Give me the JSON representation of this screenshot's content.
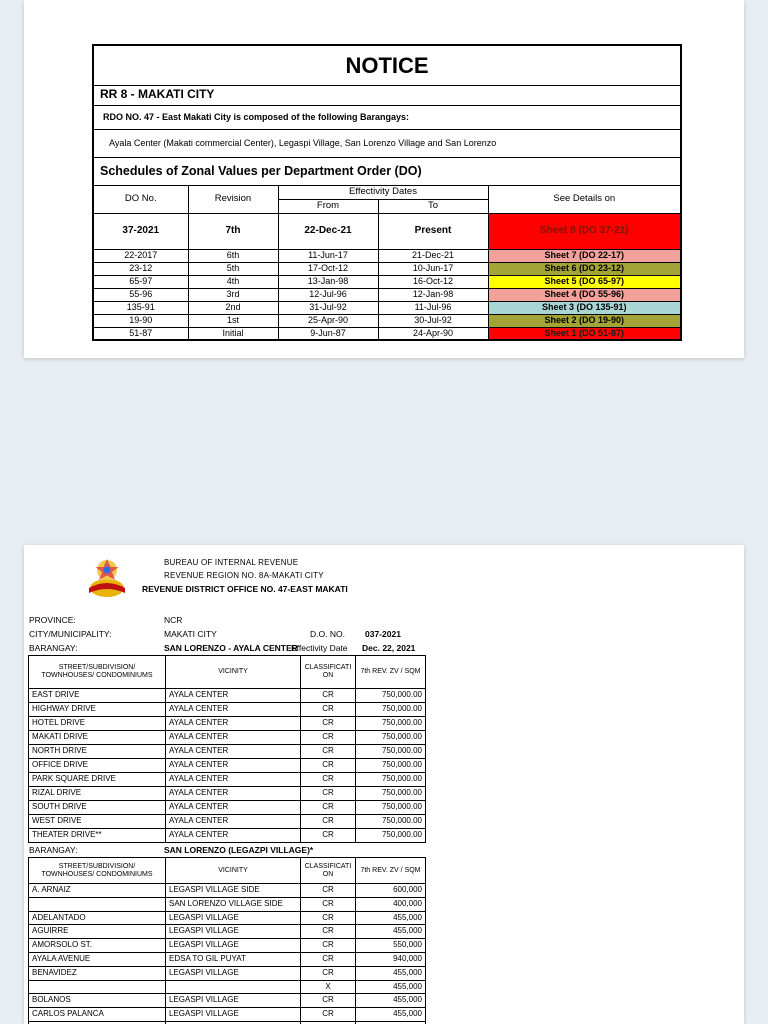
{
  "notice": {
    "title": "NOTICE",
    "region": "RR 8 - MAKATI CITY",
    "composed_label": "RDO NO. 47 - East Makati City is composed of the following Barangays:",
    "barangays_line": "Ayala Center (Makati commercial Center), Legaspi Village, San Lorenzo Village and San Lorenzo",
    "schedule_title": "Schedules of Zonal Values per Department Order (DO)",
    "headers": {
      "do_no": "DO No.",
      "revision": "Revision",
      "effectivity": "Effectivity Dates",
      "from": "From",
      "to": "To",
      "details": "See Details on"
    },
    "rows": [
      {
        "do_no": "37-2021",
        "revision": "7th",
        "from": "22-Dec-21",
        "to": "Present",
        "details": "Sheet 8 (DO 37-21)",
        "bg": "#FF0000",
        "fg": "#7E1400",
        "current": true
      },
      {
        "do_no": "22-2017",
        "revision": "6th",
        "from": "11-Jun-17",
        "to": "21-Dec-21",
        "details": "Sheet 7 (DO 22-17)",
        "bg": "#F2A29B",
        "fg": "#000000"
      },
      {
        "do_no": "23-12",
        "revision": "5th",
        "from": "17-Oct-12",
        "to": "10-Jun-17",
        "details": "Sheet 6 (DO 23-12)",
        "bg": "#A3A437",
        "fg": "#000000"
      },
      {
        "do_no": "65-97",
        "revision": "4th",
        "from": "13-Jan-98",
        "to": "16-Oct-12",
        "details": "Sheet 5 (DO 65-97)",
        "bg": "#FFFF00",
        "fg": "#000000"
      },
      {
        "do_no": "55-96",
        "revision": "3rd",
        "from": "12-Jul-96",
        "to": "12-Jan-98",
        "details": "Sheet 4 (DO 55-96)",
        "bg": "#F2A29B",
        "fg": "#000000"
      },
      {
        "do_no": "135-91",
        "revision": "2nd",
        "from": "31-Jul-92",
        "to": "11-Jul-96",
        "details": "Sheet 3 (DO 135-91)",
        "bg": "#A9D6D4",
        "fg": "#000000"
      },
      {
        "do_no": "19-90",
        "revision": "1st",
        "from": "25-Apr-90",
        "to": "30-Jul-92",
        "details": "Sheet 2 (DO 19-90)",
        "bg": "#A3A437",
        "fg": "#000000"
      },
      {
        "do_no": "51-87",
        "revision": "Initial",
        "from": "9-Jun-87",
        "to": "24-Apr-90",
        "details": "Sheet 1 (DO 51-87)",
        "bg": "#FF0000",
        "fg": "#1A1A1A"
      }
    ]
  },
  "p2": {
    "agency_line1": "BUREAU OF INTERNAL REVENUE",
    "agency_line2": "REVENUE REGION NO. 8A-MAKATI CITY",
    "agency_line3": "REVENUE DISTRICT OFFICE NO. 47-EAST MAKATI",
    "province_label": "PROVINCE:",
    "province": "NCR",
    "city_label": "CITY/MUNICIPALITY:",
    "city": "MAKATI CITY",
    "do_label": "D.O. NO.",
    "do_no": "037-2021",
    "barangay_label": "BARANGAY:",
    "barangay1": "SAN LORENZO -  AYALA CENTER",
    "effectivity_label": "Effectivity Date",
    "effectivity_date": "Dec. 22, 2021",
    "columns": {
      "street": "STREET/SUBDIVISION/ TOWNHOUSES/ CONDOMINIUMS",
      "vicinity": "VICINITY",
      "cls": "CLASSIFICATI ON",
      "zv": "7th REV. ZV / SQM"
    },
    "table1": [
      {
        "street": "EAST DRIVE",
        "vicinity": "AYALA CENTER",
        "cls": "CR",
        "zv": "750,000.00"
      },
      {
        "street": "HIGHWAY DRIVE",
        "vicinity": "AYALA CENTER",
        "cls": "CR",
        "zv": "750,000.00"
      },
      {
        "street": "HOTEL DRIVE",
        "vicinity": "AYALA CENTER",
        "cls": "CR",
        "zv": "750,000.00"
      },
      {
        "street": "MAKATI DRIVE",
        "vicinity": "AYALA CENTER",
        "cls": "CR",
        "zv": "750,000.00"
      },
      {
        "street": "NORTH DRIVE",
        "vicinity": "AYALA CENTER",
        "cls": "CR",
        "zv": "750,000.00"
      },
      {
        "street": "OFFICE DRIVE",
        "vicinity": "AYALA CENTER",
        "cls": "CR",
        "zv": "750,000.00"
      },
      {
        "street": "PARK SQUARE DRIVE",
        "vicinity": "AYALA CENTER",
        "cls": "CR",
        "zv": "750,000.00"
      },
      {
        "street": "RIZAL DRIVE",
        "vicinity": "AYALA CENTER",
        "cls": "CR",
        "zv": "750,000.00"
      },
      {
        "street": "SOUTH DRIVE",
        "vicinity": "AYALA CENTER",
        "cls": "CR",
        "zv": "750,000.00"
      },
      {
        "street": "WEST DRIVE",
        "vicinity": "AYALA CENTER",
        "cls": "CR",
        "zv": "750,000.00"
      },
      {
        "street": "THEATER DRIVE**",
        "vicinity": "AYALA CENTER",
        "cls": "CR",
        "zv": "750,000.00"
      }
    ],
    "barangay2_label": "BARANGAY:",
    "barangay2": "SAN LORENZO (LEGAZPI VILLAGE)*",
    "table2": [
      {
        "street": "A. ARNAIZ",
        "vicinity": "LEGASPI VILLAGE SIDE",
        "cls": "CR",
        "zv": "600,000"
      },
      {
        "street": "",
        "vicinity": "SAN LORENZO VILLAGE SIDE",
        "cls": "CR",
        "zv": "400,000"
      },
      {
        "street": "ADELANTADO",
        "vicinity": "LEGASPI VILLAGE",
        "cls": "CR",
        "zv": "455,000"
      },
      {
        "street": "AGUIRRE",
        "vicinity": "LEGASPI VILLAGE",
        "cls": "CR",
        "zv": "455,000"
      },
      {
        "street": "AMORSOLO ST.",
        "vicinity": "LEGASPI VILLAGE",
        "cls": "CR",
        "zv": "550,000"
      },
      {
        "street": "AYALA AVENUE",
        "vicinity": "EDSA TO GIL PUYAT",
        "cls": "CR",
        "zv": "940,000"
      },
      {
        "street": "BENAVIDEZ",
        "vicinity": "LEGASPI VILLAGE",
        "cls": "CR",
        "zv": "455,000"
      },
      {
        "street": "",
        "vicinity": "",
        "cls": "X",
        "zv": "455,000"
      },
      {
        "street": "BOLANOS",
        "vicinity": "LEGASPI VILLAGE",
        "cls": "CR",
        "zv": "455,000"
      },
      {
        "street": "CARLOS PALANCA",
        "vicinity": "LEGASPI VILLAGE",
        "cls": "CR",
        "zv": "455,000"
      },
      {
        "street": "",
        "vicinity": "",
        "cls": "",
        "zv": ""
      }
    ]
  }
}
